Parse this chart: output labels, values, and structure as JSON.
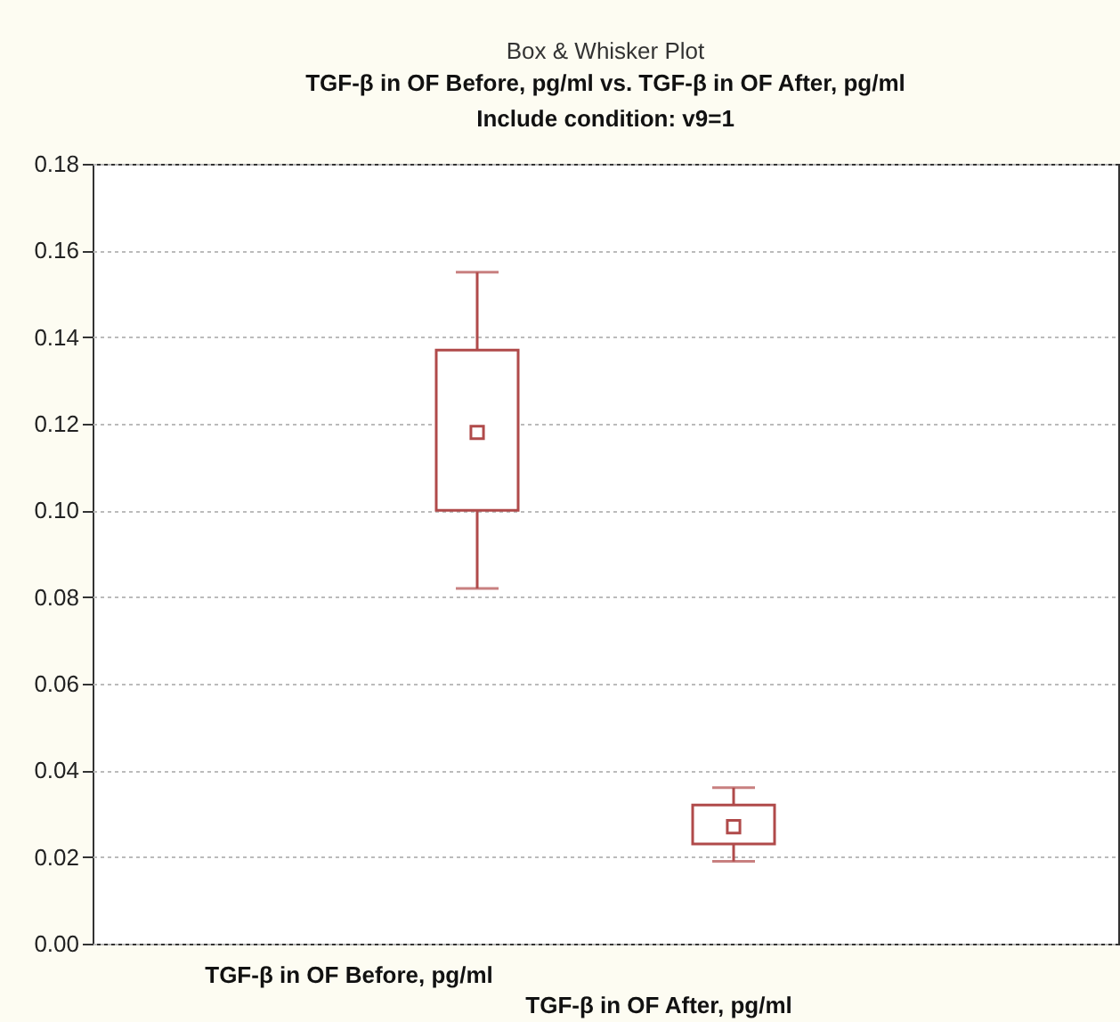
{
  "chart_data": {
    "type": "box",
    "title": "Box & Whisker Plot",
    "subtitle": "TGF-β in OF Before, pg/ml vs. TGF-β in OF After, pg/ml",
    "annotations": [
      "Include condition: v9=1"
    ],
    "categories": [
      "TGF-β in OF Before, pg/ml",
      "TGF-β in OF After, pg/ml"
    ],
    "series": [
      {
        "color": "#b04a4a",
        "boxes": [
          {
            "low": 0.082,
            "q1": 0.1,
            "median": 0.118,
            "q3": 0.137,
            "high": 0.155
          },
          {
            "low": 0.019,
            "q1": 0.023,
            "median": 0.027,
            "q3": 0.032,
            "high": 0.036
          }
        ]
      }
    ],
    "ylim": [
      0,
      0.18
    ],
    "yticks": [
      {
        "value": 0,
        "label": "0.00"
      },
      {
        "value": 0.02,
        "label": "0.02"
      },
      {
        "value": 0.04,
        "label": "0.04"
      },
      {
        "value": 0.06,
        "label": "0.06"
      },
      {
        "value": 0.08,
        "label": "0.08"
      },
      {
        "value": 0.1,
        "label": "0.10"
      },
      {
        "value": 0.12,
        "label": "0.12"
      },
      {
        "value": 0.14,
        "label": "0.14"
      },
      {
        "value": 0.16,
        "label": "0.16"
      },
      {
        "value": 0.18,
        "label": "0.18"
      }
    ],
    "grid": "y",
    "marker": "square"
  }
}
